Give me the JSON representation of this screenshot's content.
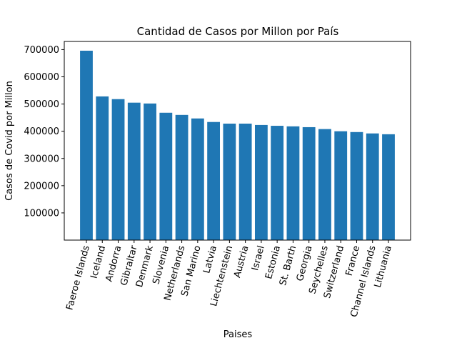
{
  "chart_data": {
    "type": "bar",
    "title": "Cantidad de Casos por Millon por País",
    "xlabel": "Paises",
    "ylabel": "Casos de Covid por Millon",
    "categories": [
      "Faeroe Islands",
      "Iceland",
      "Andorra",
      "Gibraltar",
      "Denmark",
      "Slovenia",
      "Netherlands",
      "San Marino",
      "Latvia",
      "Liechtenstein",
      "Austria",
      "Israel",
      "Estonia",
      "St. Barth",
      "Georgia",
      "Seychelles",
      "Switzerland",
      "France",
      "Channel Islands",
      "Lithuania"
    ],
    "values": [
      696000,
      528000,
      518000,
      505000,
      502000,
      468000,
      460000,
      447000,
      434000,
      428000,
      428000,
      423000,
      420000,
      418000,
      415000,
      408000,
      400000,
      397000,
      392000,
      389000
    ],
    "yticks": [
      100000,
      200000,
      300000,
      400000,
      500000,
      600000,
      700000
    ],
    "ylim": [
      0,
      730000
    ],
    "bar_color": "#1f77b4",
    "grid": false
  }
}
